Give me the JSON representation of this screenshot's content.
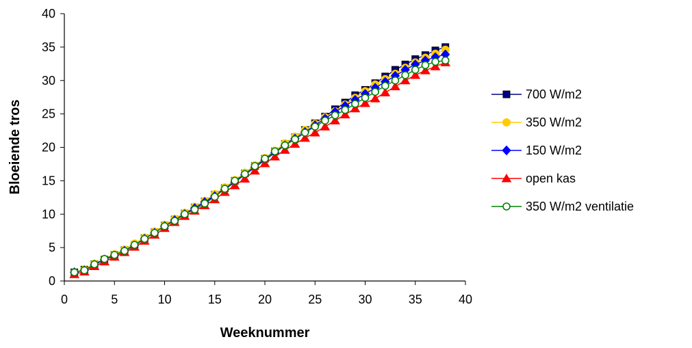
{
  "chart_data": {
    "type": "line",
    "title": "",
    "xlabel": "Weeknummer",
    "ylabel": "Bloeiende tros",
    "xlim": [
      0,
      40
    ],
    "ylim": [
      0,
      40
    ],
    "xticks": [
      0,
      5,
      10,
      15,
      20,
      25,
      30,
      35,
      40
    ],
    "yticks": [
      0,
      5,
      10,
      15,
      20,
      25,
      30,
      35,
      40
    ],
    "grid": false,
    "legend_position": "right",
    "x": [
      1,
      2,
      3,
      4,
      5,
      6,
      7,
      8,
      9,
      10,
      11,
      12,
      13,
      14,
      15,
      16,
      17,
      18,
      19,
      20,
      21,
      22,
      23,
      24,
      25,
      26,
      27,
      28,
      29,
      30,
      31,
      32,
      33,
      34,
      35,
      36,
      37,
      38
    ],
    "series": [
      {
        "name": "700 W/m2",
        "color": "#000080",
        "marker": "square",
        "values": [
          1.3,
          1.7,
          2.5,
          3.2,
          3.9,
          4.6,
          5.4,
          6.4,
          7.3,
          8.3,
          9.2,
          10.1,
          11.0,
          11.9,
          12.9,
          13.9,
          15.0,
          16.1,
          17.2,
          18.3,
          19.4,
          20.5,
          21.5,
          22.6,
          23.6,
          24.6,
          25.7,
          26.7,
          27.8,
          28.6,
          29.6,
          30.6,
          31.6,
          32.4,
          33.2,
          33.8,
          34.5,
          35.0
        ]
      },
      {
        "name": "350 W/m2",
        "color": "#FFCC00",
        "marker": "circle",
        "values": [
          1.3,
          1.7,
          2.6,
          3.3,
          4.0,
          4.7,
          5.6,
          6.5,
          7.4,
          8.4,
          9.3,
          10.2,
          11.1,
          12.0,
          13.0,
          14.0,
          15.1,
          16.2,
          17.3,
          18.4,
          19.5,
          20.6,
          21.6,
          22.6,
          23.5,
          24.5,
          25.4,
          26.4,
          27.4,
          28.4,
          29.4,
          30.2,
          31.0,
          31.9,
          32.7,
          33.4,
          34.0,
          34.6
        ]
      },
      {
        "name": "150 W/m2",
        "color": "#0000FF",
        "marker": "diamond",
        "values": [
          1.3,
          1.6,
          2.4,
          3.2,
          3.8,
          4.5,
          5.3,
          6.3,
          7.2,
          8.2,
          9.1,
          10.0,
          10.9,
          11.8,
          12.7,
          13.7,
          14.8,
          15.9,
          17.0,
          18.1,
          19.2,
          20.3,
          21.3,
          22.3,
          23.3,
          24.3,
          25.3,
          26.2,
          27.1,
          28.0,
          28.9,
          29.8,
          30.7,
          31.6,
          32.4,
          33.0,
          33.5,
          33.9
        ]
      },
      {
        "name": "open kas",
        "color": "#FF0000",
        "marker": "triangle",
        "values": [
          1.0,
          1.4,
          2.2,
          2.9,
          3.6,
          4.3,
          5.1,
          6.0,
          6.9,
          7.9,
          8.8,
          9.7,
          10.5,
          11.3,
          12.2,
          13.3,
          14.3,
          15.3,
          16.5,
          17.6,
          18.6,
          19.6,
          20.5,
          21.4,
          22.2,
          23.1,
          24.0,
          24.9,
          25.8,
          26.6,
          27.3,
          28.2,
          29.1,
          30.0,
          30.8,
          31.5,
          32.1,
          32.7
        ]
      },
      {
        "name": "350 W/m2  ventilatie",
        "color": "#008000",
        "marker": "open-circle",
        "values": [
          1.3,
          1.6,
          2.5,
          3.3,
          3.9,
          4.5,
          5.4,
          6.3,
          7.2,
          8.2,
          9.0,
          10.0,
          10.7,
          11.6,
          12.6,
          13.8,
          15.0,
          16.0,
          17.2,
          18.3,
          19.4,
          20.3,
          21.2,
          22.2,
          23.1,
          24.0,
          24.8,
          25.6,
          26.5,
          27.4,
          28.3,
          29.2,
          30.0,
          30.8,
          31.6,
          32.3,
          32.8,
          33.0
        ]
      }
    ]
  }
}
